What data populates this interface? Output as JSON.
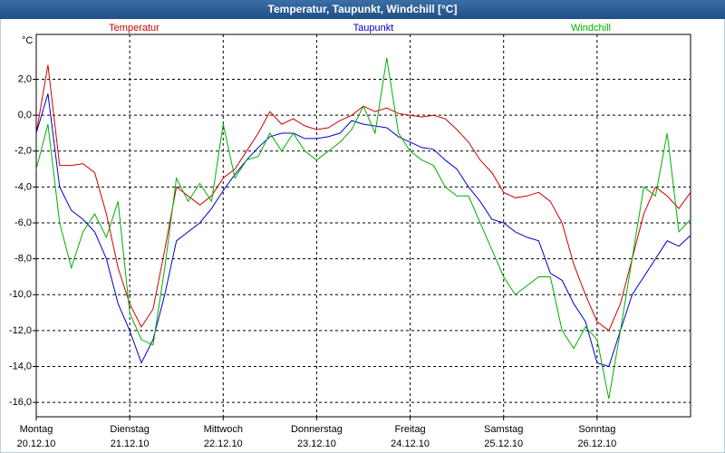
{
  "chart_data": {
    "type": "line",
    "title": "Temperatur, Taupunkt, Windchill [°C]",
    "y_label": "°C",
    "x": [
      0,
      3,
      6,
      9,
      12,
      15,
      18,
      21,
      24,
      27,
      30,
      33,
      36,
      39,
      42,
      45,
      48,
      51,
      54,
      57,
      60,
      63,
      66,
      69,
      72,
      75,
      78,
      81,
      84,
      87,
      90,
      93,
      96,
      99,
      102,
      105,
      108,
      111,
      114,
      117,
      120,
      123,
      126,
      129,
      132,
      135,
      138,
      141,
      144,
      147,
      150,
      153,
      156,
      159,
      162,
      165,
      168
    ],
    "xlim": [
      0,
      168
    ],
    "xticks": [
      {
        "value": 0,
        "label": "Montag",
        "sublabel": "20.12.10"
      },
      {
        "value": 24,
        "label": "Dienstag",
        "sublabel": "21.12.10"
      },
      {
        "value": 48,
        "label": "Mittwoch",
        "sublabel": "22.12.10"
      },
      {
        "value": 72,
        "label": "Donnerstag",
        "sublabel": "23.12.10"
      },
      {
        "value": 96,
        "label": "Freitag",
        "sublabel": "24.12.10"
      },
      {
        "value": 120,
        "label": "Samstag",
        "sublabel": "25.12.10"
      },
      {
        "value": 144,
        "label": "Sonntag",
        "sublabel": "26.12.10"
      }
    ],
    "ylim": [
      -16.8,
      4.5
    ],
    "yticks": [
      {
        "value": 2,
        "label": "2,0"
      },
      {
        "value": 0,
        "label": "0,0"
      },
      {
        "value": -2,
        "label": "-2,0"
      },
      {
        "value": -4,
        "label": "-4,0"
      },
      {
        "value": -6,
        "label": "-6,0"
      },
      {
        "value": -8,
        "label": "-8,0"
      },
      {
        "value": -10,
        "label": "-10,0"
      },
      {
        "value": -12,
        "label": "-12,0"
      },
      {
        "value": -14,
        "label": "-14,0"
      },
      {
        "value": -16,
        "label": "-16,0"
      }
    ],
    "grid": true,
    "series": [
      {
        "name": "Temperatur",
        "color": "#d00000",
        "values": [
          -1.0,
          2.8,
          -2.8,
          -2.8,
          -2.7,
          -3.2,
          -5.5,
          -8.5,
          -10.5,
          -11.8,
          -10.8,
          -7.5,
          -4.0,
          -4.5,
          -5.0,
          -4.5,
          -3.5,
          -3.0,
          -2.0,
          -1.0,
          0.2,
          -0.5,
          -0.2,
          -0.6,
          -0.8,
          -0.7,
          -0.3,
          0.0,
          0.5,
          0.2,
          0.4,
          0.1,
          0.0,
          -0.1,
          0.0,
          -0.2,
          -0.8,
          -1.5,
          -2.5,
          -3.2,
          -4.3,
          -4.6,
          -4.5,
          -4.3,
          -4.8,
          -6.0,
          -8.3,
          -10.0,
          -11.5,
          -12.0,
          -10.5,
          -8.0,
          -5.5,
          -4.0,
          -4.5,
          -5.2,
          -4.3
        ]
      },
      {
        "name": "Taupunkt",
        "color": "#0000cc",
        "values": [
          -1.0,
          1.2,
          -4.0,
          -5.3,
          -5.8,
          -6.5,
          -8.0,
          -10.5,
          -12.0,
          -13.8,
          -12.5,
          -10.0,
          -7.0,
          -6.5,
          -6.0,
          -5.2,
          -4.2,
          -3.3,
          -2.5,
          -1.8,
          -1.2,
          -1.0,
          -1.0,
          -1.3,
          -1.3,
          -1.2,
          -1.0,
          -0.3,
          -0.5,
          -0.6,
          -0.7,
          -1.2,
          -1.5,
          -1.8,
          -1.9,
          -2.5,
          -3.0,
          -4.0,
          -4.8,
          -5.8,
          -6.0,
          -6.5,
          -6.8,
          -7.0,
          -8.8,
          -9.2,
          -10.5,
          -11.5,
          -13.8,
          -14.0,
          -12.0,
          -10.0,
          -9.0,
          -8.0,
          -7.0,
          -7.3,
          -6.7
        ]
      },
      {
        "name": "Windchill",
        "color": "#00b000",
        "values": [
          -3.0,
          -0.5,
          -6.0,
          -8.5,
          -6.5,
          -5.5,
          -6.8,
          -4.8,
          -11.0,
          -12.5,
          -12.8,
          -8.5,
          -3.5,
          -4.8,
          -3.8,
          -4.8,
          -0.5,
          -3.5,
          -2.5,
          -2.3,
          -1.0,
          -2.0,
          -1.0,
          -2.0,
          -2.5,
          -2.0,
          -1.5,
          -0.8,
          0.5,
          -1.0,
          3.2,
          -1.0,
          -2.0,
          -2.5,
          -2.8,
          -4.0,
          -4.5,
          -4.5,
          -6.0,
          -7.5,
          -9.0,
          -10.0,
          -9.5,
          -9.0,
          -9.0,
          -12.0,
          -13.0,
          -11.8,
          -12.5,
          -15.8,
          -12.0,
          -8.0,
          -4.0,
          -4.5,
          -1.0,
          -6.5,
          -5.8
        ]
      }
    ]
  }
}
